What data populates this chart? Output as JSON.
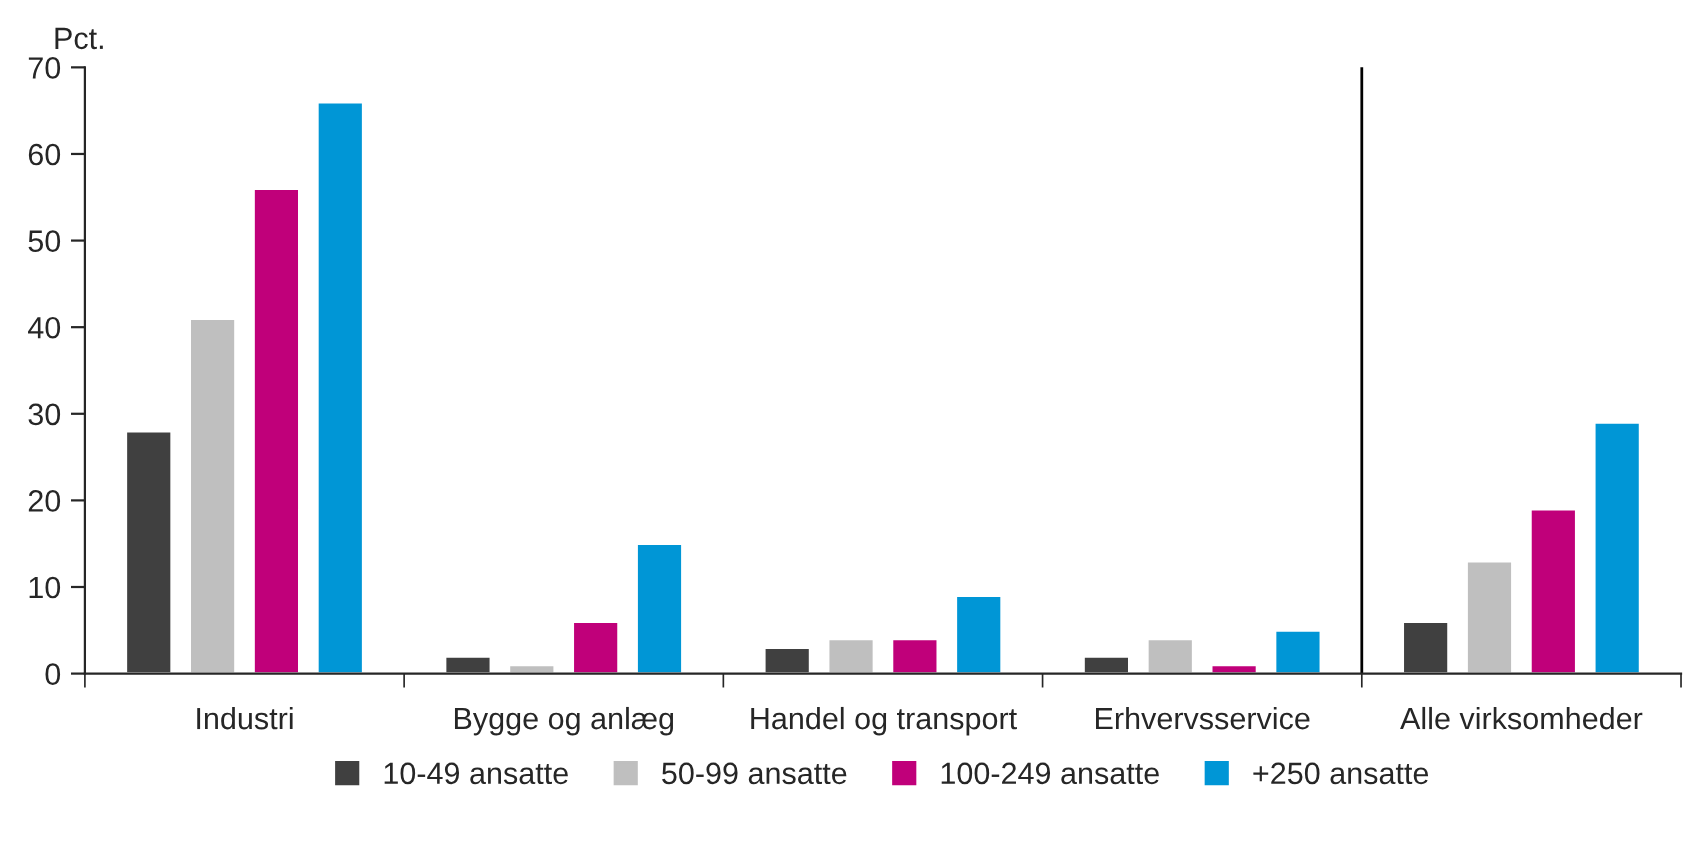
{
  "chart_data": {
    "type": "bar",
    "ylabel": "Pct.",
    "categories": [
      "Industri",
      "Bygge og anlæg",
      "Handel og transport",
      "Erhvervsservice",
      "Alle virksomheder"
    ],
    "series": [
      {
        "name": "10-49 ansatte",
        "color": "#404040",
        "values": [
          28,
          2,
          3,
          2,
          6
        ]
      },
      {
        "name": "50-99 ansatte",
        "color": "#bfbfbf",
        "values": [
          41,
          1,
          4,
          4,
          13
        ]
      },
      {
        "name": "100-249 ansatte",
        "color": "#c0007a",
        "values": [
          56,
          6,
          4,
          1,
          19
        ]
      },
      {
        "name": "+250 ansatte",
        "color": "#0096d6",
        "values": [
          66,
          15,
          9,
          5,
          29
        ]
      }
    ],
    "ylim": [
      0,
      70
    ],
    "yticks": [
      0,
      10,
      20,
      30,
      40,
      50,
      60,
      70
    ],
    "grid": false,
    "legend": "bottom"
  }
}
